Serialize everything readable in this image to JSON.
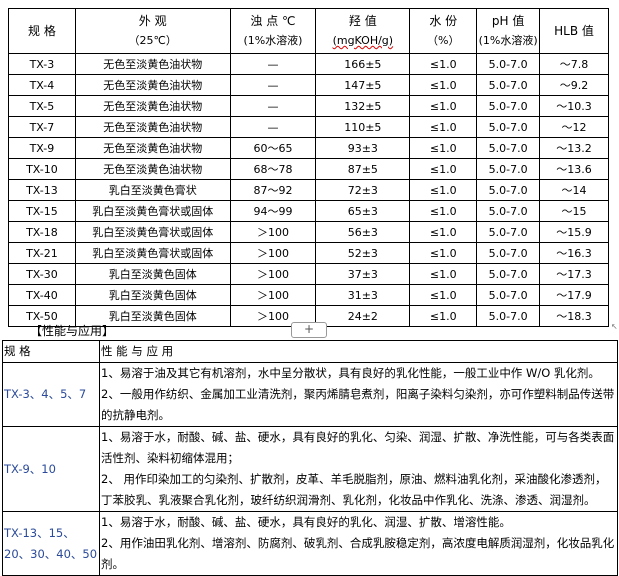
{
  "spec_table": {
    "headers": [
      {
        "main": "规 格",
        "sub": ""
      },
      {
        "main": "外 观",
        "sub": "（25℃）"
      },
      {
        "main": "浊 点 ℃",
        "sub": "(1%水溶液)"
      },
      {
        "main": "羟 值",
        "sub": "(mgKOH/g)"
      },
      {
        "main": "水 份",
        "sub": "（%）"
      },
      {
        "main": "pH 值",
        "sub": "(1%水溶液)"
      },
      {
        "main": "HLB 值",
        "sub": ""
      }
    ],
    "rows": [
      [
        "TX-3",
        "无色至淡黄色油状物",
        "—",
        "166±5",
        "≤1.0",
        "5.0-7.0",
        "～7.8"
      ],
      [
        "TX-4",
        "无色至淡黄色油状物",
        "—",
        "147±5",
        "≤1.0",
        "5.0-7.0",
        "～9.2"
      ],
      [
        "TX-5",
        "无色至淡黄色油状物",
        "—",
        "132±5",
        "≤1.0",
        "5.0-7.0",
        "～10.3"
      ],
      [
        "TX-7",
        "无色至淡黄色油状物",
        "—",
        "110±5",
        "≤1.0",
        "5.0-7.0",
        "～12"
      ],
      [
        "TX-9",
        "无色至淡黄色油状物",
        "60～65",
        "93±3",
        "≤1.0",
        "5.0-7.0",
        "～13.2"
      ],
      [
        "TX-10",
        "无色至淡黄色油状物",
        "68～78",
        "87±5",
        "≤1.0",
        "5.0-7.0",
        "～13.6"
      ],
      [
        "TX-13",
        "乳白至淡黄色膏状",
        "87～92",
        "72±3",
        "≤1.0",
        "5.0-7.0",
        "～14"
      ],
      [
        "TX-15",
        "乳白至淡黄色膏状或固体",
        "94～99",
        "65±3",
        "≤1.0",
        "5.0-7.0",
        "～15"
      ],
      [
        "TX-18",
        "乳白至淡黄色膏状或固体",
        "＞100",
        "56±3",
        "≤1.0",
        "5.0-7.0",
        "～15.9"
      ],
      [
        "TX-21",
        "乳白至淡黄色膏状或固体",
        "＞100",
        "52±3",
        "≤1.0",
        "5.0-7.0",
        "～16.3"
      ],
      [
        "TX-30",
        "乳白至淡黄色固体",
        "＞100",
        "37±3",
        "≤1.0",
        "5.0-7.0",
        "～17.3"
      ],
      [
        "TX-40",
        "乳白至淡黄色固体",
        "＞100",
        "31±3",
        "≤1.0",
        "5.0-7.0",
        "～17.9"
      ],
      [
        "TX-50",
        "乳白至淡黄色固体",
        "＞100",
        "24±2",
        "≤1.0",
        "5.0-7.0",
        "～18.3"
      ]
    ]
  },
  "section_title": "【性能与应用】",
  "add_button": "+",
  "app_table": {
    "headers": [
      "规 格",
      "性 能 与 应 用"
    ],
    "rows": [
      {
        "spec": "TX-3、4、5、7",
        "lines": [
          "1、易溶于油及其它有机溶剂，水中呈分散状，具有良好的乳化性能，一般工业中作 W/O 乳化剂。",
          "2、一般用作纺织、金属加工业清洗剂，聚丙烯腈皂煮剂，阳离子染料匀染剂，亦可作塑料制品传送带的抗静电剂。"
        ]
      },
      {
        "spec": "TX-9、10",
        "lines": [
          "1、易溶于水，耐酸、碱、盐、硬水，具有良好的乳化、匀染、润湿、扩散、净洗性能，可与各类表面活性剂、染料初缩体混用；",
          "2、 用作印染加工的匀染剂、扩散剂，皮革、羊毛脱脂剂，原油、燃料油乳化剂，采油酸化渗透剂，丁苯胶乳、乳液聚合乳化剂，玻纤纺织润滑剂、乳化剂，化妆品中作乳化、洗涤、渗透、润湿剂。"
        ]
      },
      {
        "spec": "TX-13、15、20、30、40、50",
        "lines": [
          "1、易溶于水，耐酸、碱、盐、硬水，具有良好的乳化、润湿、扩散、增溶性能。",
          "2、用作油田乳化剂、增溶剂、防腐剂、破乳剂、合成乳胺稳定剂，高浓度电解质润湿剂，化妆品乳化剂。"
        ]
      }
    ]
  }
}
